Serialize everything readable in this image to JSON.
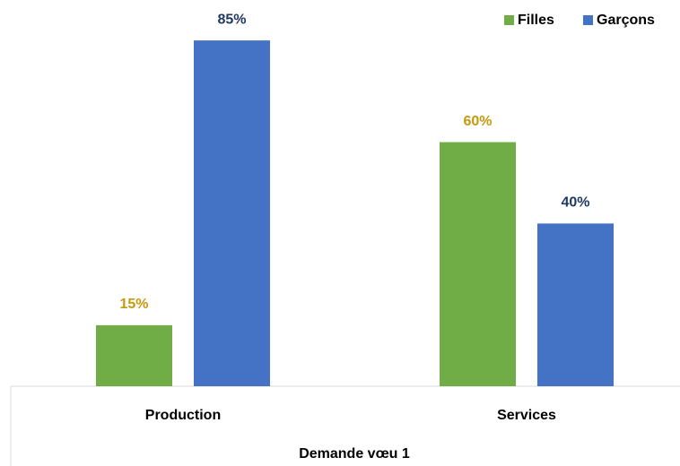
{
  "chart_data": {
    "type": "bar",
    "x_label": "Demande vœu 1",
    "categories": [
      "Production",
      "Services"
    ],
    "series": [
      {
        "name": "Filles",
        "color": "#70ad47",
        "label_color": "#c49a0c",
        "values": [
          15,
          60
        ],
        "value_labels": [
          "15%",
          "60%"
        ]
      },
      {
        "name": "Garçons",
        "color": "#4472c4",
        "label_color": "#1f3864",
        "values": [
          85,
          40
        ],
        "value_labels": [
          "85%",
          "40%"
        ]
      }
    ],
    "legend": "top-right"
  }
}
